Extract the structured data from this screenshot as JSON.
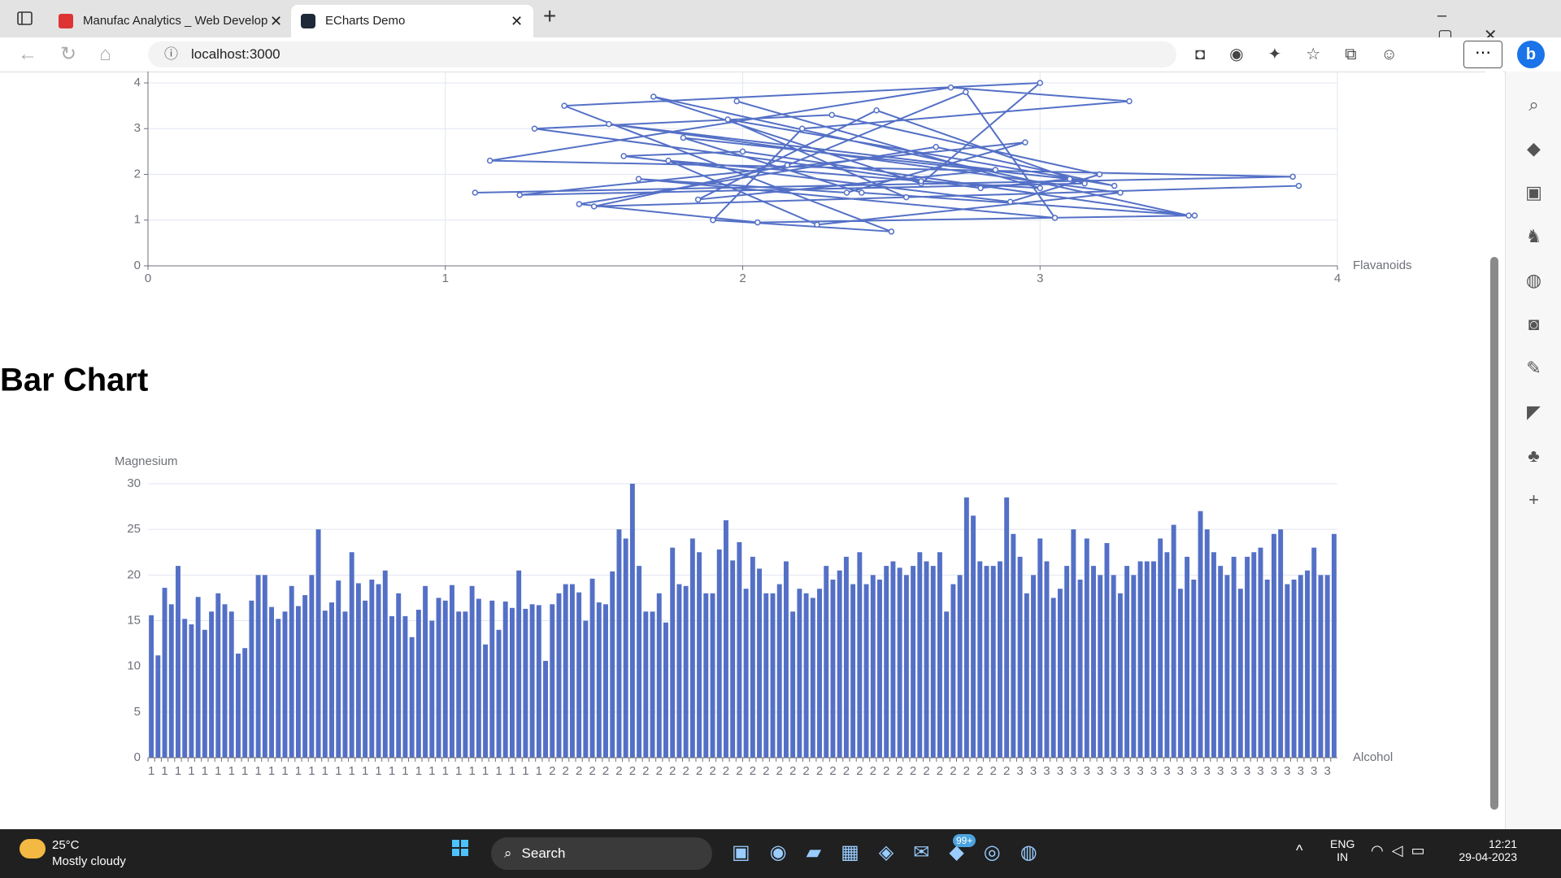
{
  "browser": {
    "tabs": [
      "Manufac Analytics _ Web Develop",
      "ECharts Demo"
    ],
    "url": "localhost:3000"
  },
  "heading": "Bar Chart",
  "chart_data": [
    {
      "type": "line",
      "x_label": "Flavanoids",
      "x": [
        1.1,
        3.85,
        1.15,
        2.7,
        3.3,
        2.2,
        1.9,
        2.5,
        1.4,
        3.0,
        2.6,
        1.7,
        3.5,
        2.0,
        1.6,
        2.9,
        3.2,
        2.3,
        1.3,
        2.8,
        3.1,
        1.8,
        2.4,
        3.52,
        2.05,
        1.45,
        2.65,
        3.25,
        1.95,
        2.55,
        3.87,
        1.5,
        2.15,
        2.75,
        3.05,
        1.65,
        2.35,
        2.95,
        1.25,
        3.15,
        2.45,
        1.85,
        2.85,
        1.55,
        3.27,
        2.25,
        1.75,
        2.6,
        3.0,
        1.98
      ],
      "series": [
        {
          "color": "#5470c6",
          "values": [
            1.6,
            1.95,
            2.3,
            3.9,
            3.6,
            3.0,
            1.0,
            0.75,
            3.5,
            4.0,
            1.8,
            3.7,
            1.1,
            2.5,
            2.4,
            1.4,
            2.0,
            3.3,
            3.0,
            1.7,
            1.9,
            2.8,
            1.6,
            1.1,
            0.95,
            1.35,
            2.6,
            1.75,
            3.2,
            1.5,
            1.75,
            1.3,
            2.2,
            3.8,
            1.05,
            1.9,
            1.6,
            2.7,
            1.55,
            1.8,
            3.4,
            1.45,
            2.1,
            3.1,
            1.6,
            0.9,
            2.3,
            1.85,
            1.7,
            3.6
          ]
        }
      ],
      "xlim": [
        0,
        4
      ],
      "xticks": [
        0,
        1,
        2,
        3,
        4
      ],
      "ylim": [
        0,
        4
      ],
      "yticks": [
        0,
        1,
        2,
        3,
        4
      ],
      "grid": true
    },
    {
      "type": "bar",
      "x_label": "Alcohol",
      "y_label": "Magnesium",
      "color": "#5470c6",
      "categories": [
        "1",
        null,
        "1",
        null,
        "1",
        null,
        "1",
        null,
        "1",
        null,
        "1",
        null,
        "1",
        null,
        "1",
        null,
        "1",
        null,
        "1",
        null,
        "1",
        null,
        "1",
        null,
        "1",
        null,
        "1",
        null,
        "1",
        null,
        "1",
        null,
        "1",
        null,
        "1",
        null,
        "1",
        null,
        "1",
        null,
        "1",
        null,
        "1",
        null,
        "1",
        null,
        "1",
        null,
        "1",
        null,
        "1",
        null,
        "1",
        null,
        "1",
        null,
        "1",
        null,
        "1",
        null,
        "2",
        null,
        "2",
        null,
        "2",
        null,
        "2",
        null,
        "2",
        null,
        "2",
        null,
        "2",
        null,
        "2",
        null,
        "2",
        null,
        "2",
        null,
        "2",
        null,
        "2",
        null,
        "2",
        null,
        "2",
        null,
        "2",
        null,
        "2",
        null,
        "2",
        null,
        "2",
        null,
        "2",
        null,
        "2",
        null,
        "2",
        null,
        "2",
        null,
        "2",
        null,
        "2",
        null,
        "2",
        null,
        "2",
        null,
        "2",
        null,
        "2",
        null,
        "2",
        null,
        "2",
        null,
        "2",
        null,
        "2",
        null,
        "2",
        null,
        "2",
        null,
        "2",
        null,
        "3",
        null,
        "3",
        null,
        "3",
        null,
        "3",
        null,
        "3",
        null,
        "3",
        null,
        "3",
        null,
        "3",
        null,
        "3",
        null,
        "3",
        null,
        "3",
        null,
        "3",
        null,
        "3",
        null,
        "3",
        null,
        "3",
        null,
        "3",
        null,
        "3",
        null,
        "3",
        null,
        "3",
        null,
        "3",
        null,
        "3",
        null,
        "3",
        null,
        "3",
        null,
        "3",
        null
      ],
      "values": [
        15.6,
        11.2,
        18.6,
        16.8,
        21,
        15.2,
        14.6,
        17.6,
        14,
        16,
        18,
        16.8,
        16,
        11.4,
        12,
        17.2,
        20,
        20,
        16.5,
        15.2,
        16,
        18.8,
        16.6,
        17.8,
        20,
        25,
        16.1,
        17,
        19.4,
        16,
        22.5,
        19.1,
        17.2,
        19.5,
        19,
        20.5,
        15.5,
        18,
        15.5,
        13.2,
        16.2,
        18.8,
        15,
        17.5,
        17.2,
        18.9,
        16,
        16,
        18.8,
        17.4,
        12.4,
        17.2,
        14,
        17.1,
        16.4,
        20.5,
        16.3,
        16.8,
        16.7,
        10.6,
        16.8,
        18,
        19,
        19,
        18.1,
        15,
        19.6,
        17,
        16.8,
        20.4,
        25,
        24,
        30,
        21,
        16,
        16,
        18,
        14.8,
        23,
        19,
        18.8,
        24,
        22.5,
        18,
        18,
        22.8,
        26,
        21.6,
        23.6,
        18.5,
        22,
        20.7,
        18,
        18,
        19,
        21.5,
        16,
        18.5,
        18,
        17.5,
        18.5,
        21,
        19.5,
        20.5,
        22,
        19,
        22.5,
        19,
        20,
        19.5,
        21,
        21.5,
        20.8,
        20,
        21,
        22.5,
        21.5,
        21,
        22.5,
        16,
        19,
        20,
        28.5,
        26.5,
        21.5,
        21,
        21,
        21.5,
        28.5,
        24.5,
        22,
        18,
        20,
        24,
        21.5,
        17.5,
        18.5,
        21,
        25,
        19.5,
        24,
        21,
        20,
        23.5,
        20,
        18,
        21,
        20,
        21.5,
        21.5,
        21.5,
        24,
        22.5,
        25.5,
        18.5,
        22,
        19.5,
        27,
        25,
        22.5,
        21,
        20,
        22,
        18.5,
        22,
        22.5,
        23,
        19.5,
        24.5,
        25,
        19,
        19.5,
        20,
        20.5,
        23,
        20,
        20,
        24.5
      ],
      "ylim": [
        0,
        30
      ],
      "yticks": [
        0,
        5,
        10,
        15,
        20,
        25,
        30
      ],
      "grid": true
    }
  ],
  "taskbar": {
    "temp": "25°C",
    "weather": "Mostly cloudy",
    "search": "Search",
    "badge": "99+",
    "lang": [
      "ENG",
      "IN"
    ],
    "time": "12:21",
    "date": "29-04-2023"
  }
}
